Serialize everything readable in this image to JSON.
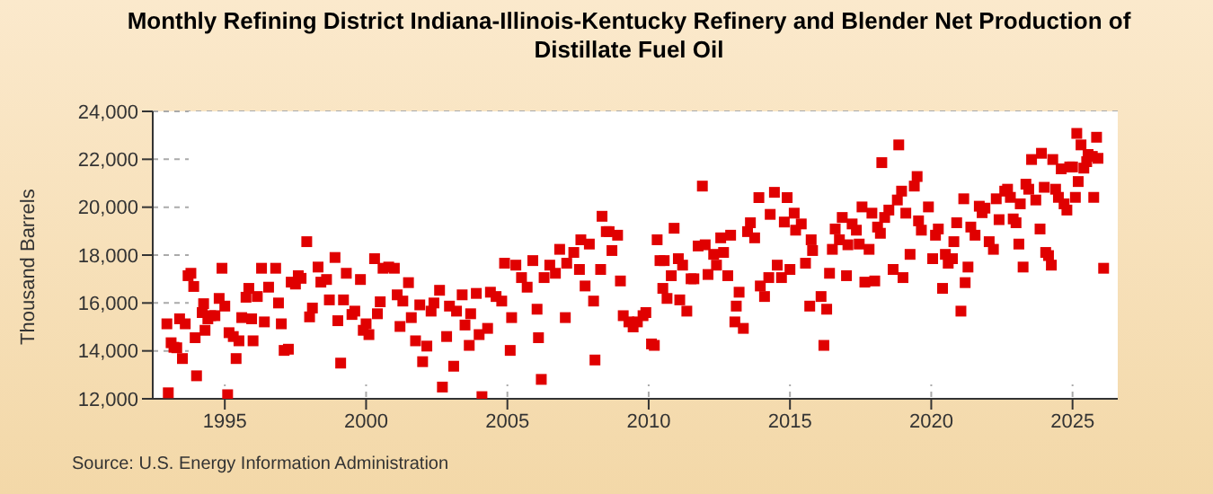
{
  "chart_data": {
    "type": "scatter",
    "title": "Monthly Refining District Indiana-Illinois-Kentucky Refinery and Blender Net Production of Distillate Fuel Oil",
    "ylabel": "Thousand Barrels",
    "annotations": [
      "Source: U.S. Energy Information Administration"
    ],
    "x": [
      1992.95,
      1993.0,
      1993.1,
      1993.2,
      1993.3,
      1993.4,
      1993.5,
      1993.6,
      1993.7,
      1993.8,
      1993.9,
      1993.95,
      1994.0,
      1994.2,
      1994.25,
      1994.3,
      1994.4,
      1994.5,
      1994.65,
      1994.8,
      1994.9,
      1995.0,
      1995.1,
      1995.15,
      1995.3,
      1995.4,
      1995.5,
      1995.6,
      1995.75,
      1995.85,
      1995.95,
      1996.0,
      1996.15,
      1996.3,
      1996.4,
      1996.55,
      1996.8,
      1996.9,
      1997.0,
      1997.1,
      1997.25,
      1997.35,
      1997.5,
      1997.6,
      1997.7,
      1997.9,
      1998.0,
      1998.1,
      1998.3,
      1998.4,
      1998.6,
      1998.7,
      1998.9,
      1999.0,
      1999.1,
      1999.2,
      1999.3,
      1999.5,
      1999.6,
      1999.8,
      1999.9,
      2000.0,
      2000.1,
      2000.3,
      2000.4,
      2000.5,
      2000.6,
      2000.8,
      2001.0,
      2001.1,
      2001.2,
      2001.3,
      2001.5,
      2001.6,
      2001.75,
      2001.9,
      2002.0,
      2002.15,
      2002.3,
      2002.4,
      2002.6,
      2002.7,
      2002.85,
      2002.95,
      2003.1,
      2003.2,
      2003.4,
      2003.5,
      2003.65,
      2003.7,
      2003.9,
      2004.0,
      2004.1,
      2004.3,
      2004.4,
      2004.6,
      2004.8,
      2004.9,
      2005.1,
      2005.15,
      2005.3,
      2005.5,
      2005.7,
      2005.9,
      2006.05,
      2006.1,
      2006.2,
      2006.3,
      2006.5,
      2006.7,
      2006.85,
      2007.05,
      2007.1,
      2007.35,
      2007.55,
      2007.6,
      2007.75,
      2007.9,
      2008.05,
      2008.1,
      2008.3,
      2008.35,
      2008.5,
      2008.6,
      2008.7,
      2008.9,
      2009.0,
      2009.1,
      2009.3,
      2009.45,
      2009.6,
      2009.8,
      2009.9,
      2010.1,
      2010.2,
      2010.3,
      2010.4,
      2010.5,
      2010.55,
      2010.65,
      2010.8,
      2010.9,
      2011.05,
      2011.1,
      2011.2,
      2011.35,
      2011.5,
      2011.6,
      2011.75,
      2011.9,
      2012.0,
      2012.1,
      2012.3,
      2012.4,
      2012.55,
      2012.65,
      2012.8,
      2012.9,
      2013.05,
      2013.1,
      2013.2,
      2013.35,
      2013.5,
      2013.6,
      2013.75,
      2013.9,
      2013.95,
      2014.1,
      2014.25,
      2014.3,
      2014.45,
      2014.55,
      2014.7,
      2014.8,
      2014.9,
      2015.0,
      2015.15,
      2015.2,
      2015.4,
      2015.55,
      2015.7,
      2015.75,
      2015.8,
      2016.1,
      2016.2,
      2016.3,
      2016.4,
      2016.5,
      2016.6,
      2016.75,
      2016.85,
      2017.0,
      2017.05,
      2017.2,
      2017.35,
      2017.45,
      2017.55,
      2017.65,
      2017.8,
      2017.9,
      2018.0,
      2018.1,
      2018.2,
      2018.25,
      2018.35,
      2018.5,
      2018.65,
      2018.8,
      2018.85,
      2018.95,
      2019.0,
      2019.1,
      2019.25,
      2019.4,
      2019.5,
      2019.55,
      2019.65,
      2019.9,
      2020.05,
      2020.15,
      2020.25,
      2020.4,
      2020.5,
      2020.6,
      2020.75,
      2020.8,
      2020.9,
      2021.05,
      2021.15,
      2021.2,
      2021.3,
      2021.4,
      2021.55,
      2021.7,
      2021.8,
      2021.9,
      2022.05,
      2022.2,
      2022.3,
      2022.4,
      2022.6,
      2022.7,
      2022.8,
      2022.9,
      2023.0,
      2023.1,
      2023.15,
      2023.25,
      2023.35,
      2023.45,
      2023.55,
      2023.7,
      2023.85,
      2023.9,
      2024.0,
      2024.05,
      2024.15,
      2024.25,
      2024.3,
      2024.4,
      2024.5,
      2024.6,
      2024.7,
      2024.8,
      2024.9,
      2025.0,
      2025.1,
      2025.15,
      2025.2,
      2025.3,
      2025.4,
      2025.5,
      2025.55,
      2025.7,
      2025.75,
      2025.85,
      2025.9,
      2026.1
    ],
    "values": [
      15130,
      12250,
      14340,
      14150,
      14130,
      15340,
      13680,
      15130,
      17140,
      17240,
      16690,
      14550,
      12960,
      15600,
      15970,
      14860,
      15340,
      15470,
      15470,
      16190,
      17450,
      15870,
      12170,
      14760,
      14600,
      13680,
      14420,
      15390,
      16240,
      16610,
      15340,
      14420,
      16270,
      17450,
      15210,
      16660,
      17450,
      16000,
      15130,
      14020,
      14070,
      16870,
      16790,
      17140,
      17030,
      18560,
      15420,
      15790,
      17500,
      16870,
      16980,
      16130,
      17900,
      15260,
      13490,
      16130,
      17240,
      15520,
      15660,
      16980,
      14860,
      15130,
      14680,
      17850,
      15550,
      16050,
      17450,
      17500,
      17450,
      16340,
      15020,
      16080,
      16850,
      15390,
      14420,
      15920,
      13550,
      14200,
      15660,
      16000,
      16530,
      12490,
      14600,
      15870,
      13360,
      15660,
      16340,
      15080,
      14230,
      15550,
      16400,
      14680,
      12090,
      14940,
      16450,
      16270,
      16080,
      17660,
      14020,
      15390,
      17580,
      17060,
      16660,
      17770,
      15740,
      14550,
      12810,
      17060,
      17580,
      17240,
      18240,
      15390,
      17660,
      18110,
      17400,
      18640,
      16710,
      18460,
      16080,
      13620,
      17400,
      19620,
      18980,
      18980,
      18190,
      18830,
      16920,
      15470,
      15210,
      15000,
      15210,
      15470,
      15600,
      14290,
      14230,
      18640,
      17770,
      16610,
      17770,
      16190,
      17140,
      19120,
      17850,
      16130,
      17580,
      15660,
      17010,
      17010,
      18380,
      20880,
      18430,
      17190,
      18030,
      17580,
      18720,
      18110,
      17140,
      18830,
      15210,
      15870,
      16450,
      14940,
      18980,
      19350,
      18720,
      20400,
      16710,
      16270,
      17060,
      19700,
      20620,
      17580,
      17060,
      19380,
      20400,
      17400,
      19750,
      19040,
      19300,
      17660,
      15870,
      18640,
      18190,
      16270,
      14230,
      15740,
      17240,
      18240,
      19090,
      18640,
      19570,
      17140,
      18430,
      19300,
      19040,
      18460,
      20010,
      16870,
      18240,
      19750,
      16920,
      19170,
      18910,
      21860,
      19570,
      19880,
      17400,
      20300,
      22600,
      20670,
      17060,
      19750,
      18030,
      20880,
      21280,
      19430,
      19040,
      20010,
      17850,
      18830,
      19090,
      16610,
      18030,
      17660,
      17850,
      18560,
      19350,
      15660,
      20350,
      16850,
      17500,
      19170,
      18830,
      20040,
      19770,
      19960,
      18560,
      18240,
      20350,
      19480,
      20670,
      20750,
      20410,
      19510,
      19350,
      18460,
      20140,
      17500,
      20960,
      20750,
      21990,
      20300,
      19090,
      22250,
      20830,
      18110,
      17980,
      17580,
      21990,
      20750,
      20410,
      21600,
      20140,
      19880,
      21680,
      21680,
      20410,
      23080,
      21070,
      22600,
      21630,
      21900,
      22200,
      22120,
      20410,
      22920,
      22040,
      17450
    ],
    "color": "#e00000",
    "marker": "square",
    "xlim": [
      1992.45,
      2026.6
    ],
    "xticks": [
      1995,
      2000,
      2005,
      2010,
      2015,
      2020,
      2025
    ],
    "ylim": [
      12000,
      24000
    ],
    "yticks": [
      {
        "value": 12000,
        "label": "12,000"
      },
      {
        "value": 14000,
        "label": "14,000"
      },
      {
        "value": 16000,
        "label": "16,000"
      },
      {
        "value": 18000,
        "label": "18,000"
      },
      {
        "value": 20000,
        "label": "20,000"
      },
      {
        "value": 22000,
        "label": "22,000"
      },
      {
        "value": 24000,
        "label": "24,000"
      }
    ],
    "grid": true
  }
}
